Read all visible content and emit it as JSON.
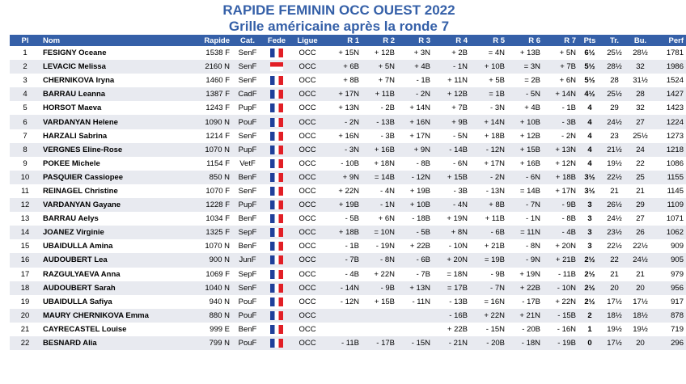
{
  "title": "RAPIDE FEMININ OCC OUEST 2022",
  "subtitle": "Grille américaine après la ronde 7",
  "headers": [
    "Pl",
    "Nom",
    "Rapide",
    "Cat.",
    "Fede",
    "Ligue",
    "R 1",
    "R 2",
    "R 3",
    "R 4",
    "R 5",
    "R 6",
    "R 7",
    "Pts",
    "Tr.",
    "Bu.",
    "Perf"
  ],
  "rows": [
    {
      "pl": "1",
      "nom": "FESIGNY Oceane",
      "rapide": "1538 F",
      "cat": "SenF",
      "fede": "fr-flag-icon",
      "ligue": "OCC",
      "r1": "+ 15N",
      "r2": "+ 12B",
      "r3": "+ 3N",
      "r4": "+ 2B",
      "r5": "= 4N",
      "r6": "+ 13B",
      "r7": "+ 5N",
      "pts": "6½",
      "tr": "25½",
      "bu": "28½",
      "perf": "1781"
    },
    {
      "pl": "2",
      "nom": "LEVACIC Melissa",
      "rapide": "2160 N",
      "cat": "SenF",
      "fede": "mc-flag-icon",
      "ligue": "OCC",
      "r1": "+ 6B",
      "r2": "+ 5N",
      "r3": "+ 4B",
      "r4": "- 1N",
      "r5": "+ 10B",
      "r6": "= 3N",
      "r7": "+ 7B",
      "pts": "5½",
      "tr": "28½",
      "bu": "32",
      "perf": "1986"
    },
    {
      "pl": "3",
      "nom": "CHERNIKOVA Iryna",
      "rapide": "1460 F",
      "cat": "SenF",
      "fede": "fr-flag-icon",
      "ligue": "OCC",
      "r1": "+ 8B",
      "r2": "+ 7N",
      "r3": "- 1B",
      "r4": "+ 11N",
      "r5": "+ 5B",
      "r6": "= 2B",
      "r7": "+ 6N",
      "pts": "5½",
      "tr": "28",
      "bu": "31½",
      "perf": "1524"
    },
    {
      "pl": "4",
      "nom": "BARRAU Leanna",
      "rapide": "1387 F",
      "cat": "CadF",
      "fede": "fr-flag-icon",
      "ligue": "OCC",
      "r1": "+ 17N",
      "r2": "+ 11B",
      "r3": "- 2N",
      "r4": "+ 12B",
      "r5": "= 1B",
      "r6": "- 5N",
      "r7": "+ 14N",
      "pts": "4½",
      "tr": "25½",
      "bu": "28",
      "perf": "1427"
    },
    {
      "pl": "5",
      "nom": "HORSOT Maeva",
      "rapide": "1243 F",
      "cat": "PupF",
      "fede": "fr-flag-icon",
      "ligue": "OCC",
      "r1": "+ 13N",
      "r2": "- 2B",
      "r3": "+ 14N",
      "r4": "+ 7B",
      "r5": "- 3N",
      "r6": "+ 4B",
      "r7": "- 1B",
      "pts": "4",
      "tr": "29",
      "bu": "32",
      "perf": "1423"
    },
    {
      "pl": "6",
      "nom": "VARDANYAN Helene",
      "rapide": "1090 N",
      "cat": "PouF",
      "fede": "fr-flag-icon",
      "ligue": "OCC",
      "r1": "- 2N",
      "r2": "- 13B",
      "r3": "+ 16N",
      "r4": "+ 9B",
      "r5": "+ 14N",
      "r6": "+ 10B",
      "r7": "- 3B",
      "pts": "4",
      "tr": "24½",
      "bu": "27",
      "perf": "1224"
    },
    {
      "pl": "7",
      "nom": "HARZALI Sabrina",
      "rapide": "1214 F",
      "cat": "SenF",
      "fede": "fr-flag-icon",
      "ligue": "OCC",
      "r1": "+ 16N",
      "r2": "- 3B",
      "r3": "+ 17N",
      "r4": "- 5N",
      "r5": "+ 18B",
      "r6": "+ 12B",
      "r7": "- 2N",
      "pts": "4",
      "tr": "23",
      "bu": "25½",
      "perf": "1273"
    },
    {
      "pl": "8",
      "nom": "VERGNES Eline-Rose",
      "rapide": "1070 N",
      "cat": "PupF",
      "fede": "fr-flag-icon",
      "ligue": "OCC",
      "r1": "- 3N",
      "r2": "+ 16B",
      "r3": "+ 9N",
      "r4": "- 14B",
      "r5": "- 12N",
      "r6": "+ 15B",
      "r7": "+ 13N",
      "pts": "4",
      "tr": "21½",
      "bu": "24",
      "perf": "1218"
    },
    {
      "pl": "9",
      "nom": "POKEE Michele",
      "rapide": "1154 F",
      "cat": "VetF",
      "fede": "fr-flag-icon",
      "ligue": "OCC",
      "r1": "- 10B",
      "r2": "+ 18N",
      "r3": "- 8B",
      "r4": "- 6N",
      "r5": "+ 17N",
      "r6": "+ 16B",
      "r7": "+ 12N",
      "pts": "4",
      "tr": "19½",
      "bu": "22",
      "perf": "1086"
    },
    {
      "pl": "10",
      "nom": "PASQUIER Cassiopee",
      "rapide": "850 N",
      "cat": "BenF",
      "fede": "fr-flag-icon",
      "ligue": "OCC",
      "r1": "+ 9N",
      "r2": "= 14B",
      "r3": "- 12N",
      "r4": "+ 15B",
      "r5": "- 2N",
      "r6": "- 6N",
      "r7": "+ 18B",
      "pts": "3½",
      "tr": "22½",
      "bu": "25",
      "perf": "1155"
    },
    {
      "pl": "11",
      "nom": "REINAGEL Christine",
      "rapide": "1070 F",
      "cat": "SenF",
      "fede": "fr-flag-icon",
      "ligue": "OCC",
      "r1": "+ 22N",
      "r2": "- 4N",
      "r3": "+ 19B",
      "r4": "- 3B",
      "r5": "- 13N",
      "r6": "= 14B",
      "r7": "+ 17N",
      "pts": "3½",
      "tr": "21",
      "bu": "21",
      "perf": "1145"
    },
    {
      "pl": "12",
      "nom": "VARDANYAN Gayane",
      "rapide": "1228 F",
      "cat": "PupF",
      "fede": "fr-flag-icon",
      "ligue": "OCC",
      "r1": "+ 19B",
      "r2": "- 1N",
      "r3": "+ 10B",
      "r4": "- 4N",
      "r5": "+ 8B",
      "r6": "- 7N",
      "r7": "- 9B",
      "pts": "3",
      "tr": "26½",
      "bu": "29",
      "perf": "1109"
    },
    {
      "pl": "13",
      "nom": "BARRAU Aelys",
      "rapide": "1034 F",
      "cat": "BenF",
      "fede": "fr-flag-icon",
      "ligue": "OCC",
      "r1": "- 5B",
      "r2": "+ 6N",
      "r3": "- 18B",
      "r4": "+ 19N",
      "r5": "+ 11B",
      "r6": "- 1N",
      "r7": "- 8B",
      "pts": "3",
      "tr": "24½",
      "bu": "27",
      "perf": "1071"
    },
    {
      "pl": "14",
      "nom": "JOANEZ Virginie",
      "rapide": "1325 F",
      "cat": "SepF",
      "fede": "fr-flag-icon",
      "ligue": "OCC",
      "r1": "+ 18B",
      "r2": "= 10N",
      "r3": "- 5B",
      "r4": "+ 8N",
      "r5": "- 6B",
      "r6": "= 11N",
      "r7": "- 4B",
      "pts": "3",
      "tr": "23½",
      "bu": "26",
      "perf": "1062"
    },
    {
      "pl": "15",
      "nom": "UBAIDULLA Amina",
      "rapide": "1070 N",
      "cat": "BenF",
      "fede": "fr-flag-icon",
      "ligue": "OCC",
      "r1": "- 1B",
      "r2": "- 19N",
      "r3": "+ 22B",
      "r4": "- 10N",
      "r5": "+ 21B",
      "r6": "- 8N",
      "r7": "+ 20N",
      "pts": "3",
      "tr": "22½",
      "bu": "22½",
      "perf": "909"
    },
    {
      "pl": "16",
      "nom": "AUDOUBERT Lea",
      "rapide": "900 N",
      "cat": "JunF",
      "fede": "fr-flag-icon",
      "ligue": "OCC",
      "r1": "- 7B",
      "r2": "- 8N",
      "r3": "- 6B",
      "r4": "+ 20N",
      "r5": "= 19B",
      "r6": "- 9N",
      "r7": "+ 21B",
      "pts": "2½",
      "tr": "22",
      "bu": "24½",
      "perf": "905"
    },
    {
      "pl": "17",
      "nom": "RAZGULYAEVA Anna",
      "rapide": "1069 F",
      "cat": "SepF",
      "fede": "fr-flag-icon",
      "ligue": "OCC",
      "r1": "- 4B",
      "r2": "+ 22N",
      "r3": "- 7B",
      "r4": "= 18N",
      "r5": "- 9B",
      "r6": "+ 19N",
      "r7": "- 11B",
      "pts": "2½",
      "tr": "21",
      "bu": "21",
      "perf": "979"
    },
    {
      "pl": "18",
      "nom": "AUDOUBERT Sarah",
      "rapide": "1040 N",
      "cat": "SenF",
      "fede": "fr-flag-icon",
      "ligue": "OCC",
      "r1": "- 14N",
      "r2": "- 9B",
      "r3": "+ 13N",
      "r4": "= 17B",
      "r5": "- 7N",
      "r6": "+ 22B",
      "r7": "- 10N",
      "pts": "2½",
      "tr": "20",
      "bu": "20",
      "perf": "956"
    },
    {
      "pl": "19",
      "nom": "UBAIDULLA Safiya",
      "rapide": "940 N",
      "cat": "PouF",
      "fede": "fr-flag-icon",
      "ligue": "OCC",
      "r1": "- 12N",
      "r2": "+ 15B",
      "r3": "- 11N",
      "r4": "- 13B",
      "r5": "= 16N",
      "r6": "- 17B",
      "r7": "+ 22N",
      "pts": "2½",
      "tr": "17½",
      "bu": "17½",
      "perf": "917"
    },
    {
      "pl": "20",
      "nom": "MAURY CHERNIKOVA Emma",
      "rapide": "880 N",
      "cat": "PouF",
      "fede": "fr-flag-icon",
      "ligue": "OCC",
      "r1": "",
      "r2": "",
      "r3": "",
      "r4": "- 16B",
      "r5": "+ 22N",
      "r6": "+ 21N",
      "r7": "- 15B",
      "pts": "2",
      "tr": "18½",
      "bu": "18½",
      "perf": "878"
    },
    {
      "pl": "21",
      "nom": "CAYRECASTEL Louise",
      "rapide": "999 E",
      "cat": "BenF",
      "fede": "fr-flag-icon",
      "ligue": "OCC",
      "r1": "",
      "r2": "",
      "r3": "",
      "r4": "+ 22B",
      "r5": "- 15N",
      "r6": "- 20B",
      "r7": "- 16N",
      "pts": "1",
      "tr": "19½",
      "bu": "19½",
      "perf": "719"
    },
    {
      "pl": "22",
      "nom": "BESNARD Alia",
      "rapide": "799 N",
      "cat": "PouF",
      "fede": "fr-flag-icon",
      "ligue": "OCC",
      "r1": "- 11B",
      "r2": "- 17B",
      "r3": "- 15N",
      "r4": "- 21N",
      "r5": "- 20B",
      "r6": "- 18N",
      "r7": "- 19B",
      "pts": "0",
      "tr": "17½",
      "bu": "20",
      "perf": "296"
    }
  ]
}
